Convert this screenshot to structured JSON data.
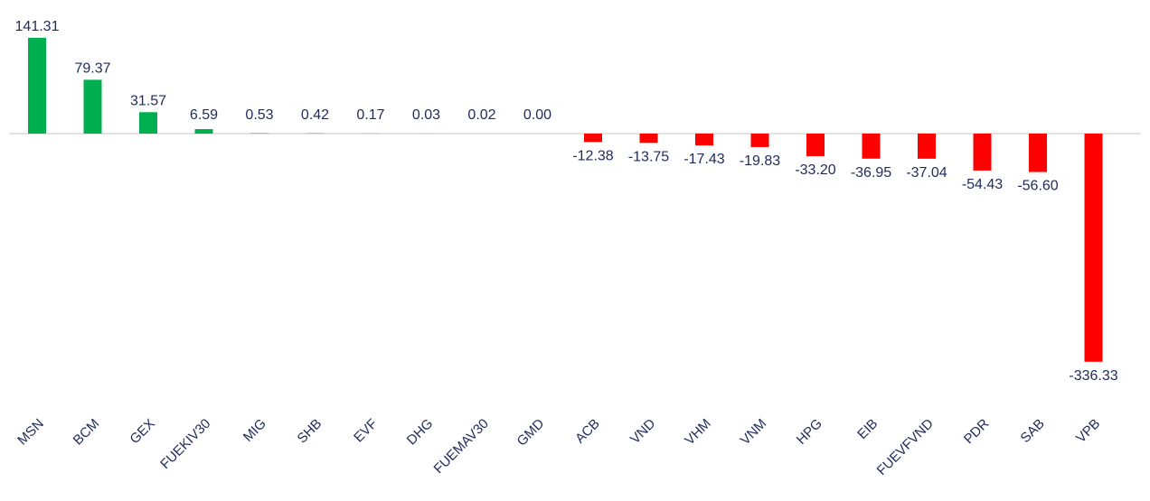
{
  "chart_data": {
    "type": "bar",
    "categories": [
      "MSN",
      "BCM",
      "GEX",
      "FUEKIV30",
      "MIG",
      "SHB",
      "EVF",
      "DHG",
      "FUEMAV30",
      "GMD",
      "ACB",
      "VND",
      "VHM",
      "VNM",
      "HPG",
      "EIB",
      "FUEVFVND",
      "PDR",
      "SAB",
      "VPB"
    ],
    "values": [
      141.31,
      79.37,
      31.57,
      6.59,
      0.53,
      0.42,
      0.17,
      0.03,
      0.02,
      0.0,
      -12.38,
      -13.75,
      -17.43,
      -19.83,
      -33.2,
      -36.95,
      -37.04,
      -54.43,
      -56.6,
      -336.33
    ],
    "value_labels": [
      "141.31",
      "79.37",
      "31.57",
      "6.59",
      "0.53",
      "0.42",
      "0.17",
      "0.03",
      "0.02",
      "0.00",
      "-12.38",
      "-13.75",
      "-17.43",
      "-19.83",
      "-33.20",
      "-36.95",
      "-37.04",
      "-54.43",
      "-56.60",
      "-336.33"
    ],
    "title": "",
    "xlabel": "",
    "ylabel": "",
    "ylim": [
      -336.33,
      141.31
    ],
    "grid": false,
    "legend": "none",
    "colors": {
      "positive": "#00b050",
      "negative": "#ff0000",
      "baseline": "#d9d9d9",
      "text": "#1f2a5c"
    }
  }
}
